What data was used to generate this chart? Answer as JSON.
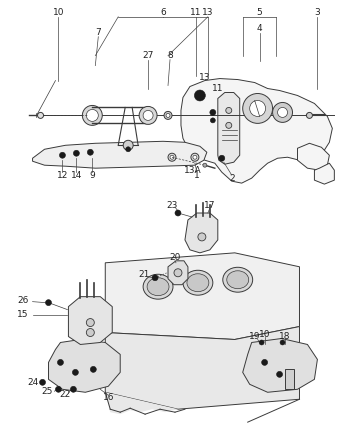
{
  "bg_color": "#ffffff",
  "lc": "#3a3a3a",
  "label_fontsize": 6.5,
  "fig_width": 3.43,
  "fig_height": 4.29,
  "dpi": 100
}
